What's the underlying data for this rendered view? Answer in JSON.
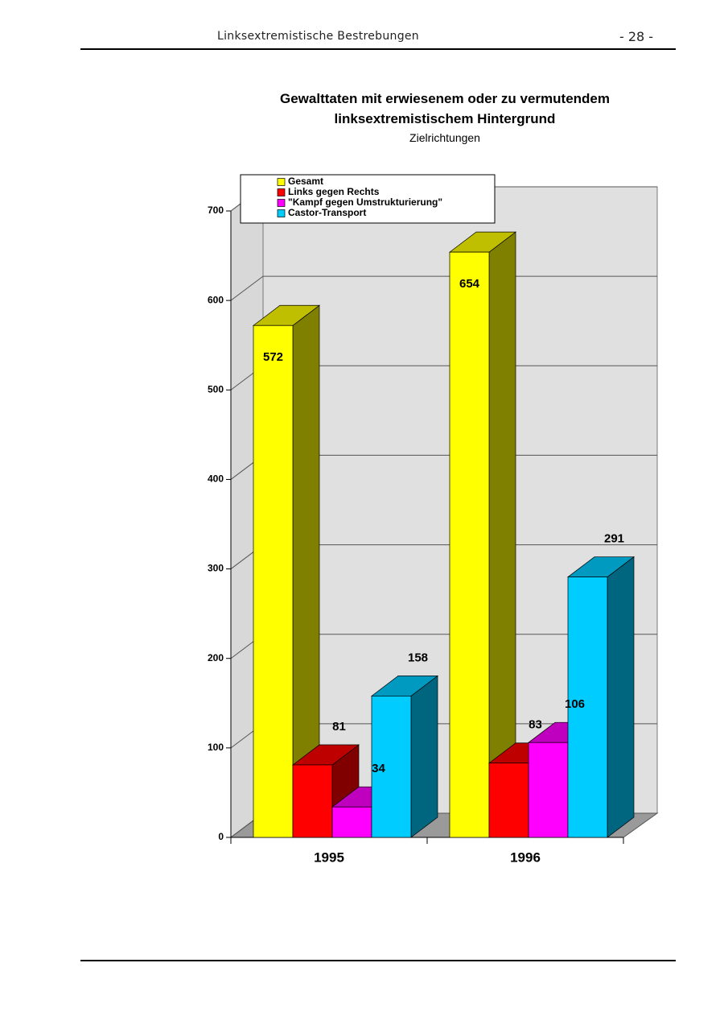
{
  "header": {
    "title": "Linksextremistische Bestrebungen",
    "page": "- 28 -"
  },
  "chart_data": {
    "type": "bar3d",
    "title": "Gewalttaten mit erwiesenem oder zu vermutendem linksextremistischem Hintergrund",
    "subtitle": "Zielrichtungen",
    "categories": [
      "1995",
      "1996"
    ],
    "series": [
      {
        "name": "Gesamt",
        "color": "#ffff00",
        "values": [
          572,
          654
        ]
      },
      {
        "name": "Links gegen Rechts",
        "color": "#ff0000",
        "values": [
          81,
          83
        ]
      },
      {
        "name": "\"Kampf gegen Umstrukturierung\"",
        "color": "#ff00ff",
        "values": [
          34,
          106
        ]
      },
      {
        "name": "Castor-Transport",
        "color": "#00ccff",
        "values": [
          158,
          291
        ]
      }
    ],
    "ylim": [
      0,
      700
    ],
    "yticks": [
      0,
      100,
      200,
      300,
      400,
      500,
      600,
      700
    ],
    "grid": true,
    "legend": "top"
  }
}
